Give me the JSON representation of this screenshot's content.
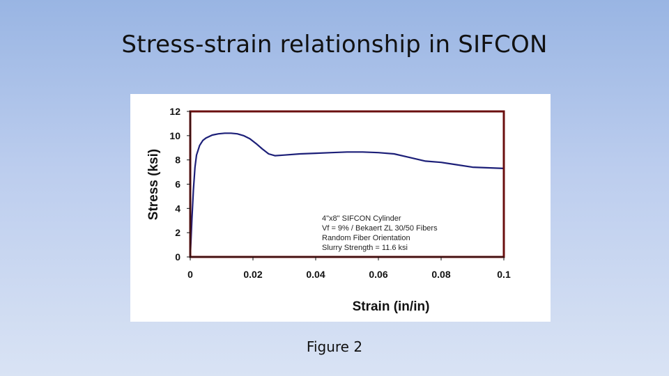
{
  "slide": {
    "title": "Stress-strain relationship in SIFCON",
    "caption": "Figure 2"
  },
  "colors": {
    "background_top": "#99b5e3",
    "background_bottom": "#d9e3f4",
    "plot_border": "#6b0f0f",
    "curve": "#1c1f78"
  },
  "chart_data": {
    "type": "line",
    "title": "",
    "xlabel": "Strain (in/in)",
    "ylabel": "Stress (ksi)",
    "xlim": [
      0,
      0.1
    ],
    "ylim": [
      0,
      12
    ],
    "xticks": [
      "0",
      "0.02",
      "0.04",
      "0.06",
      "0.08",
      "0.1"
    ],
    "yticks": [
      "0",
      "2",
      "4",
      "6",
      "8",
      "10",
      "12"
    ],
    "grid": false,
    "annotation": [
      "4\"x8\" SIFCON Cylinder",
      "Vf = 9% / Bekaert ZL 30/50 Fibers",
      "Random Fiber Orientation",
      "Slurry Strength = 11.6 ksi"
    ],
    "series": [
      {
        "x": [
          0,
          0.0005,
          0.001,
          0.0015,
          0.002,
          0.003,
          0.004,
          0.005,
          0.007,
          0.009,
          0.011,
          0.013,
          0.015,
          0.017,
          0.019,
          0.021,
          0.023,
          0.025,
          0.027,
          0.03,
          0.035,
          0.04,
          0.045,
          0.05,
          0.055,
          0.06,
          0.065,
          0.07,
          0.075,
          0.08,
          0.085,
          0.09,
          0.095,
          0.1
        ],
        "y": [
          0,
          3.0,
          5.5,
          7.4,
          8.4,
          9.2,
          9.6,
          9.8,
          10.05,
          10.15,
          10.2,
          10.2,
          10.15,
          10.0,
          9.75,
          9.35,
          8.9,
          8.5,
          8.35,
          8.4,
          8.5,
          8.55,
          8.6,
          8.65,
          8.65,
          8.6,
          8.5,
          8.2,
          7.9,
          7.8,
          7.6,
          7.4,
          7.35,
          7.3
        ]
      }
    ]
  }
}
